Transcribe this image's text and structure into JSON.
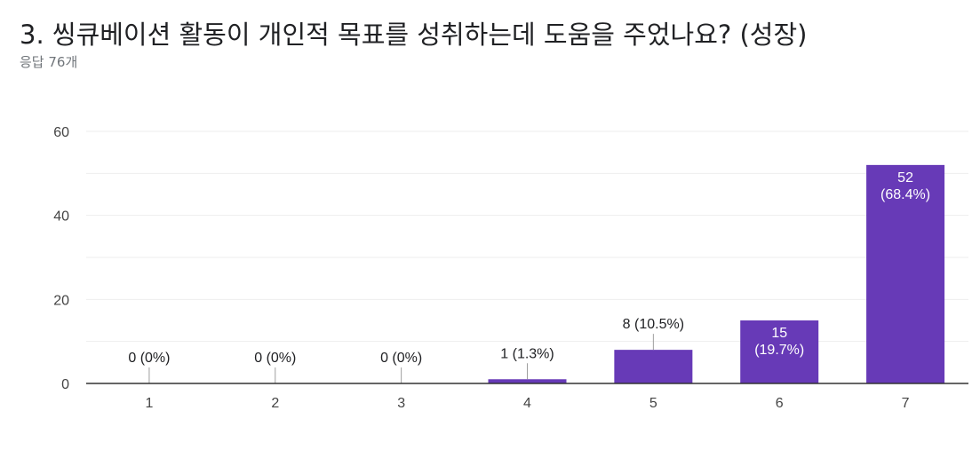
{
  "header": {
    "title": "3. 씽큐베이션 활동이 개인적 목표를 성취하는데 도움을 주었나요? (성장)",
    "subtitle": "응답 76개"
  },
  "colors": {
    "bar": "#673ab7",
    "grid": "#eeeeee",
    "axis": "#333333",
    "label_outside": "#202124",
    "label_inside": "#ffffff",
    "tick": "#444444"
  },
  "chart_data": {
    "type": "bar",
    "title": "3. 씽큐베이션 활동이 개인적 목표를 성취하는데 도움을 주었나요? (성장)",
    "xlabel": "",
    "ylabel": "",
    "ylim": [
      0,
      60
    ],
    "yticks": [
      0,
      20,
      40,
      60
    ],
    "grid": true,
    "categories": [
      "1",
      "2",
      "3",
      "4",
      "5",
      "6",
      "7"
    ],
    "values": [
      0,
      0,
      0,
      1,
      8,
      15,
      52
    ],
    "data_labels": [
      "0 (0%)",
      "0 (0%)",
      "0 (0%)",
      "1 (1.3%)",
      "8 (10.5%)",
      "15\n(19.7%)",
      "52\n(68.4%)"
    ]
  }
}
